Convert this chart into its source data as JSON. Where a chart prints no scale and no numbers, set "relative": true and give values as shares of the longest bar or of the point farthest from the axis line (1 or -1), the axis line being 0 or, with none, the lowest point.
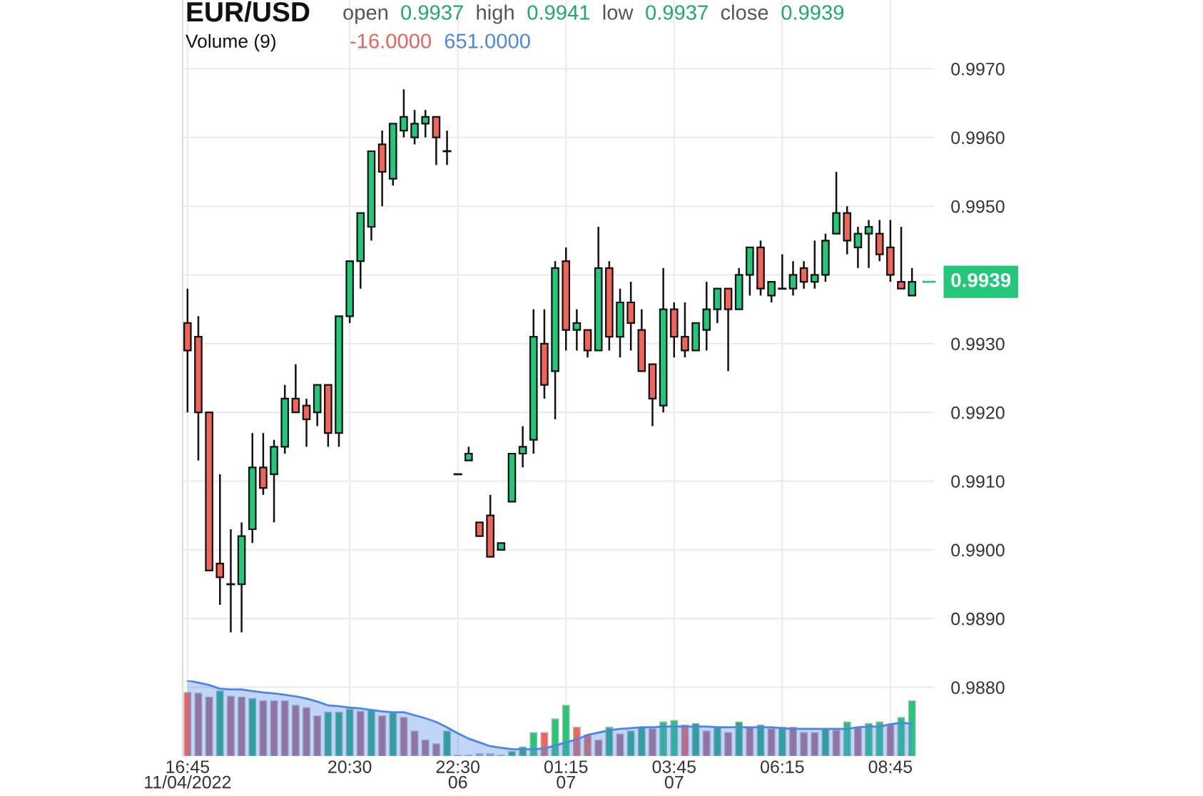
{
  "chart_data": [
    {
      "type": "candlestick",
      "title": "EUR/USD",
      "subtitle": "open 0.9937 high 0.9941 low 0.9937 close 0.9939",
      "categories": [
        "16:45\n11/04/2022",
        null,
        null,
        null,
        null,
        null,
        null,
        null,
        null,
        null,
        null,
        null,
        null,
        null,
        null,
        "20:30",
        null,
        null,
        null,
        null,
        null,
        null,
        null,
        null,
        null,
        "22:30\n06",
        null,
        null,
        null,
        null,
        null,
        null,
        null,
        null,
        null,
        "01:15\n07",
        null,
        null,
        null,
        null,
        null,
        null,
        null,
        null,
        null,
        "03:45\n07",
        null,
        null,
        null,
        null,
        null,
        null,
        null,
        null,
        null,
        "06:15",
        null,
        null,
        null,
        null,
        null,
        null,
        null,
        null,
        null,
        "08:45",
        null,
        null
      ],
      "ohlc": [
        [
          0.9933,
          0.9938,
          0.992,
          0.9929
        ],
        [
          0.9931,
          0.9934,
          0.9913,
          0.992
        ],
        [
          0.992,
          0.992,
          0.9897,
          0.9897
        ],
        [
          0.9898,
          0.9911,
          0.9892,
          0.9896
        ],
        [
          0.9895,
          0.9903,
          0.9888,
          0.9895
        ],
        [
          0.9895,
          0.9904,
          0.9888,
          0.9902
        ],
        [
          0.9903,
          0.9917,
          0.9901,
          0.9912
        ],
        [
          0.9912,
          0.9917,
          0.9908,
          0.9909
        ],
        [
          0.9911,
          0.9916,
          0.9904,
          0.9915
        ],
        [
          0.9915,
          0.9924,
          0.9914,
          0.9922
        ],
        [
          0.9922,
          0.9927,
          0.992,
          0.992
        ],
        [
          0.9921,
          0.9922,
          0.9915,
          0.9919
        ],
        [
          0.992,
          0.9924,
          0.9918,
          0.9924
        ],
        [
          0.9924,
          0.9924,
          0.9915,
          0.9917
        ],
        [
          0.9917,
          0.9934,
          0.9915,
          0.9934
        ],
        [
          0.9934,
          0.9942,
          0.9933,
          0.9942
        ],
        [
          0.9942,
          0.9949,
          0.9938,
          0.9949
        ],
        [
          0.9947,
          0.9958,
          0.9945,
          0.9958
        ],
        [
          0.9959,
          0.9961,
          0.995,
          0.9955
        ],
        [
          0.9954,
          0.9962,
          0.9953,
          0.9962
        ],
        [
          0.9961,
          0.9967,
          0.996,
          0.9963
        ],
        [
          0.996,
          0.9964,
          0.9959,
          0.9962
        ],
        [
          0.9962,
          0.9964,
          0.996,
          0.9963
        ],
        [
          0.9963,
          0.9963,
          0.9956,
          0.996
        ],
        [
          0.9958,
          0.9961,
          0.9956,
          0.9958
        ],
        [
          0.9911,
          0.9911,
          0.9911,
          0.9911
        ],
        [
          0.9913,
          0.9915,
          0.9913,
          0.9914
        ],
        [
          0.9904,
          0.9904,
          0.9902,
          0.9902
        ],
        [
          0.9905,
          0.9908,
          0.9899,
          0.9899
        ],
        [
          0.99,
          0.9901,
          0.99,
          0.9901
        ],
        [
          0.9907,
          0.9914,
          0.9907,
          0.9914
        ],
        [
          0.9914,
          0.9918,
          0.9912,
          0.9915
        ],
        [
          0.9916,
          0.9935,
          0.9914,
          0.9931
        ],
        [
          0.993,
          0.9935,
          0.9922,
          0.9924
        ],
        [
          0.9926,
          0.9942,
          0.9919,
          0.9941
        ],
        [
          0.9942,
          0.9944,
          0.9929,
          0.9932
        ],
        [
          0.9932,
          0.9935,
          0.9929,
          0.9933
        ],
        [
          0.9932,
          0.9932,
          0.9928,
          0.9929
        ],
        [
          0.9929,
          0.9947,
          0.9929,
          0.9941
        ],
        [
          0.9941,
          0.9942,
          0.9929,
          0.9931
        ],
        [
          0.9931,
          0.9938,
          0.9928,
          0.9936
        ],
        [
          0.9936,
          0.9939,
          0.9929,
          0.9933
        ],
        [
          0.9932,
          0.9935,
          0.9926,
          0.9926
        ],
        [
          0.9927,
          0.9927,
          0.9918,
          0.9922
        ],
        [
          0.9921,
          0.9941,
          0.992,
          0.9935
        ],
        [
          0.9935,
          0.9936,
          0.9928,
          0.9931
        ],
        [
          0.9931,
          0.9936,
          0.9928,
          0.9929
        ],
        [
          0.9929,
          0.9933,
          0.9929,
          0.9933
        ],
        [
          0.9932,
          0.9939,
          0.9929,
          0.9935
        ],
        [
          0.9935,
          0.9938,
          0.9933,
          0.9938
        ],
        [
          0.9938,
          0.9938,
          0.9926,
          0.9935
        ],
        [
          0.9935,
          0.9941,
          0.9935,
          0.994
        ],
        [
          0.994,
          0.9944,
          0.9937,
          0.9944
        ],
        [
          0.9944,
          0.9945,
          0.9937,
          0.9938
        ],
        [
          0.9937,
          0.9939,
          0.9936,
          0.9939
        ],
        [
          0.9938,
          0.9943,
          0.9938,
          0.9938
        ],
        [
          0.9938,
          0.9942,
          0.9937,
          0.994
        ],
        [
          0.9941,
          0.9942,
          0.9938,
          0.9939
        ],
        [
          0.9939,
          0.9945,
          0.9938,
          0.994
        ],
        [
          0.994,
          0.9946,
          0.9939,
          0.9945
        ],
        [
          0.9946,
          0.9955,
          0.9946,
          0.9949
        ],
        [
          0.9949,
          0.995,
          0.9943,
          0.9945
        ],
        [
          0.9944,
          0.9947,
          0.9941,
          0.9946
        ],
        [
          0.9946,
          0.9948,
          0.9941,
          0.9947
        ],
        [
          0.9946,
          0.9948,
          0.9942,
          0.9943
        ],
        [
          0.9944,
          0.9948,
          0.9939,
          0.994
        ],
        [
          0.9939,
          0.9947,
          0.9938,
          0.9938
        ],
        [
          0.9937,
          0.9941,
          0.9937,
          0.9939
        ]
      ],
      "colors": [
        "#f0645a",
        "#f0645a",
        "#f0645a",
        "#f0645a",
        "#111111",
        "#22c77a",
        "#22c77a",
        "#f0645a",
        "#22c77a",
        "#22c77a",
        "#f0645a",
        "#f0645a",
        "#22c77a",
        "#f0645a",
        "#22c77a",
        "#22c77a",
        "#22c77a",
        "#22c77a",
        "#f0645a",
        "#22c77a",
        "#22c77a",
        "#22c77a",
        "#22c77a",
        "#f0645a",
        "#111111",
        "#111111",
        "#22c77a",
        "#f0645a",
        "#f0645a",
        "#22c77a",
        "#22c77a",
        "#22c77a",
        "#22c77a",
        "#f0645a",
        "#22c77a",
        "#f0645a",
        "#22c77a",
        "#f0645a",
        "#22c77a",
        "#f0645a",
        "#22c77a",
        "#f0645a",
        "#f0645a",
        "#f0645a",
        "#22c77a",
        "#f0645a",
        "#f0645a",
        "#22c77a",
        "#22c77a",
        "#22c77a",
        "#f0645a",
        "#22c77a",
        "#22c77a",
        "#f0645a",
        "#22c77a",
        "#111111",
        "#22c77a",
        "#f0645a",
        "#22c77a",
        "#22c77a",
        "#22c77a",
        "#f0645a",
        "#22c77a",
        "#22c77a",
        "#f0645a",
        "#f0645a",
        "#f0645a",
        "#22c77a"
      ],
      "ylim": [
        0.987,
        0.998
      ],
      "yticks": [
        {
          "value": 0.988,
          "label": "0.9880"
        },
        {
          "value": 0.989,
          "label": "0.9890"
        },
        {
          "value": 0.99,
          "label": "0.9900"
        },
        {
          "value": 0.991,
          "label": "0.9910"
        },
        {
          "value": 0.992,
          "label": "0.9920"
        },
        {
          "value": 0.993,
          "label": "0.9930"
        },
        {
          "value": 0.994,
          "label": null
        },
        {
          "value": 0.995,
          "label": "0.9950"
        },
        {
          "value": 0.996,
          "label": "0.9960"
        },
        {
          "value": 0.997,
          "label": "0.9970"
        }
      ],
      "ref_lines": [
        {
          "axis": "y",
          "value": 0.9939,
          "label": "0.9939",
          "color": "#22c77a"
        }
      ],
      "grid": true
    },
    {
      "type": "bar",
      "title": "Volume (9)",
      "relative": true,
      "categories": [
        null,
        null,
        null,
        null,
        null,
        null,
        null,
        null,
        null,
        null,
        null,
        null,
        null,
        null,
        null,
        null,
        null,
        null,
        null,
        null,
        null,
        null,
        null,
        null,
        null,
        null,
        null,
        null,
        null,
        null,
        null,
        null,
        null,
        null,
        null,
        null,
        null,
        null,
        null,
        null,
        null,
        null,
        null,
        null,
        null,
        null,
        null,
        null,
        null,
        null,
        null,
        null,
        null,
        null,
        null,
        null,
        null,
        null,
        null,
        null,
        null,
        null,
        null,
        null,
        null,
        null,
        null,
        null
      ],
      "annotations": [
        "-16.0000",
        "651.0000"
      ],
      "series": [
        {
          "type": "bar",
          "color": "#e8625a",
          "values": [
            0.84,
            0.83,
            0.78,
            0.86,
            0.79,
            0.78,
            0.76,
            0.73,
            0.73,
            0.73,
            0.67,
            0.64,
            0.53,
            0.58,
            0.58,
            0.62,
            0.59,
            0.61,
            0.53,
            0.58,
            0.51,
            0.33,
            0.21,
            0.16,
            0.33,
            0.01,
            0.01,
            0.03,
            0.03,
            0.01,
            0.06,
            0.12,
            0.31,
            0.31,
            0.49,
            0.67,
            0.38,
            0.28,
            0.21,
            0.38,
            0.29,
            0.33,
            0.38,
            0.36,
            0.45,
            0.47,
            0.41,
            0.43,
            0.33,
            0.38,
            0.31,
            0.45,
            0.38,
            0.41,
            0.36,
            0.38,
            0.38,
            0.31,
            0.31,
            0.36,
            0.34,
            0.45,
            0.38,
            0.43,
            0.45,
            0.41,
            0.51,
            0.73
          ],
          "colors": [
            "#f0645a",
            "#b8697f",
            "#b8697f",
            "#1fae7c",
            "#b8697f",
            "#b8697f",
            "#1fae7c",
            "#b8697f",
            "#b8697f",
            "#b8697f",
            "#b8697f",
            "#b8697f",
            "#b8697f",
            "#1fae7c",
            "#1fae7c",
            "#1fae7c",
            "#b8697f",
            "#1fae7c",
            "#b8697f",
            "#1fae7c",
            "#b8697f",
            "#b8697f",
            "#b8697f",
            "#b8697f",
            "#1fae7c",
            "#a8a8a8",
            "#a8a8a8",
            "#a8a8a8",
            "#a8a8a8",
            "#a8a8a8",
            "#1fae7c",
            "#1fae7c",
            "#22c77a",
            "#f0645a",
            "#22c77a",
            "#22c77a",
            "#f0645a",
            "#f0645a",
            "#b8697f",
            "#1fae7c",
            "#b8697f",
            "#1fae7c",
            "#1fae7c",
            "#b8697f",
            "#22c77a",
            "#22c77a",
            "#f0645a",
            "#1fae7c",
            "#b8697f",
            "#1fae7c",
            "#b8697f",
            "#1fae7c",
            "#b8697f",
            "#1fae7c",
            "#b8697f",
            "#1fae7c",
            "#b8697f",
            "#b8697f",
            "#b8697f",
            "#1fae7c",
            "#b8697f",
            "#22c77a",
            "#b8697f",
            "#22c77a",
            "#22c77a",
            "#b8697f",
            "#22c77a",
            "#22c77a"
          ]
        },
        {
          "type": "area",
          "color": "#4a86e8",
          "values": [
            1.0,
            0.97,
            0.94,
            0.89,
            0.88,
            0.88,
            0.86,
            0.84,
            0.83,
            0.81,
            0.79,
            0.76,
            0.72,
            0.67,
            0.66,
            0.64,
            0.63,
            0.61,
            0.59,
            0.58,
            0.58,
            0.54,
            0.5,
            0.45,
            0.38,
            0.3,
            0.23,
            0.18,
            0.13,
            0.11,
            0.09,
            0.09,
            0.09,
            0.1,
            0.14,
            0.18,
            0.22,
            0.28,
            0.31,
            0.34,
            0.36,
            0.37,
            0.38,
            0.38,
            0.39,
            0.39,
            0.39,
            0.39,
            0.39,
            0.38,
            0.38,
            0.38,
            0.38,
            0.38,
            0.38,
            0.37,
            0.36,
            0.36,
            0.36,
            0.36,
            0.36,
            0.36,
            0.38,
            0.39,
            0.39,
            0.42,
            0.44,
            0.43
          ]
        }
      ]
    }
  ]
}
